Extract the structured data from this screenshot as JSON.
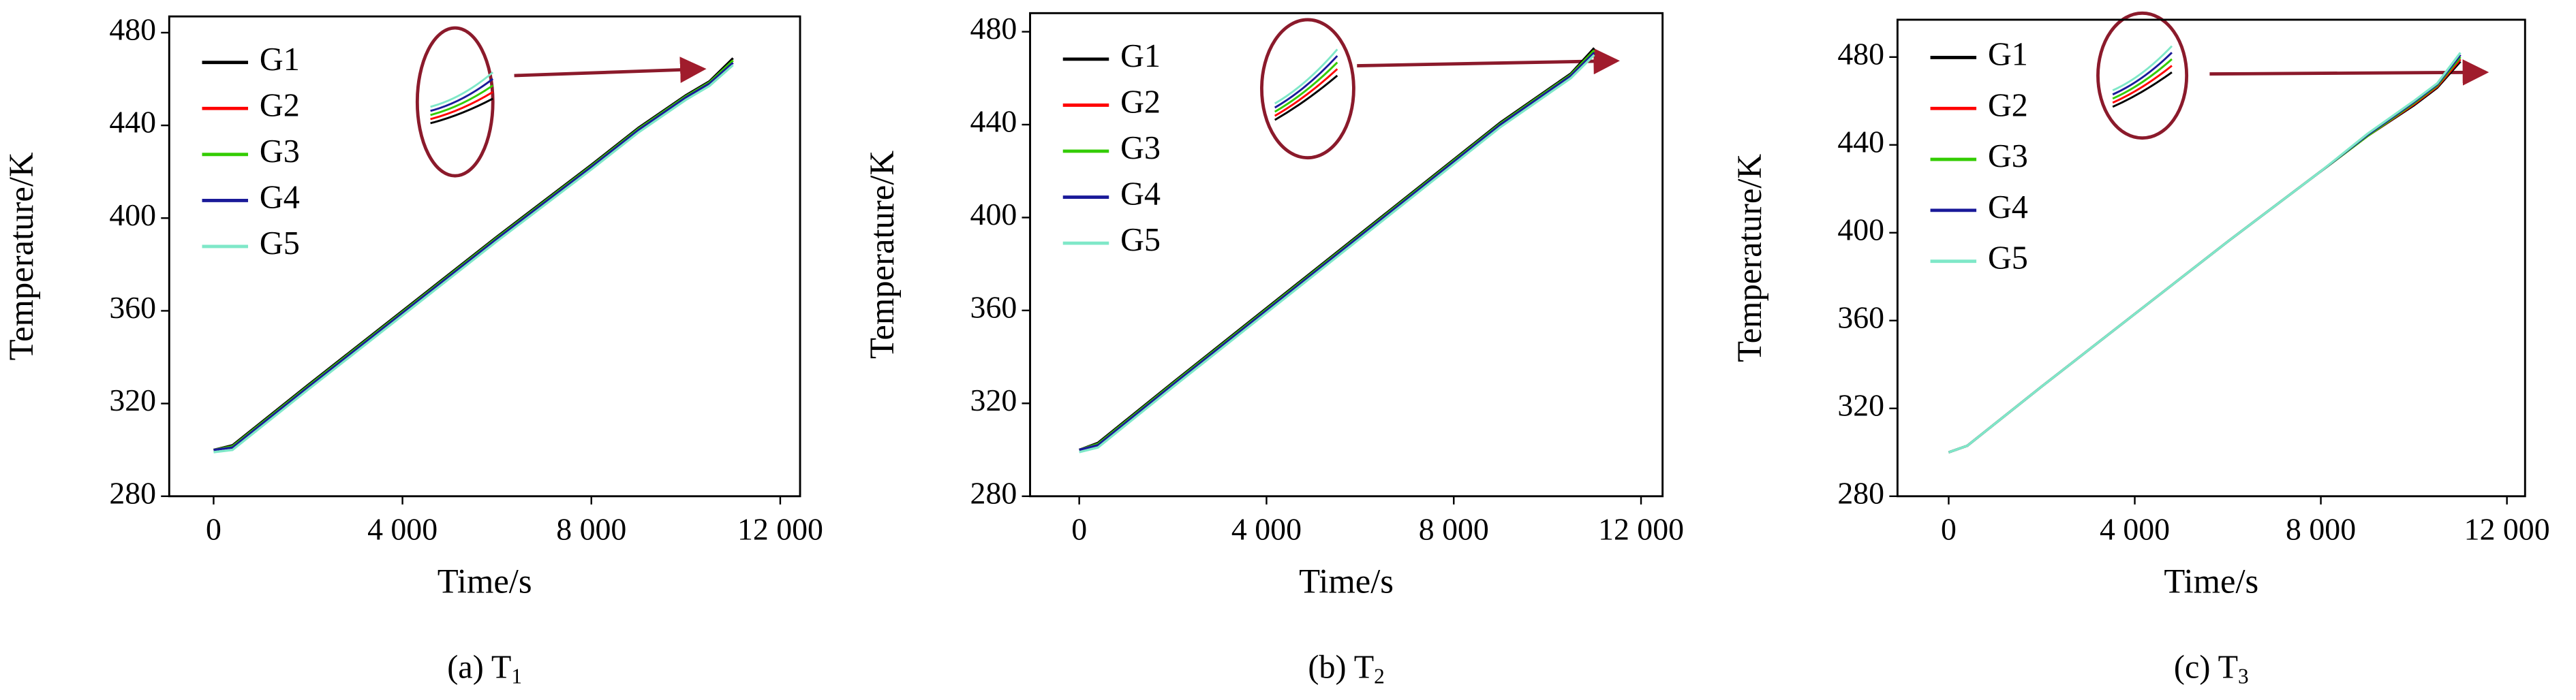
{
  "chart_data": [
    {
      "type": "line",
      "xlabel": "Time/s",
      "ylabel": "Temperature/K",
      "caption": "(a) T",
      "caption_subscript": "1",
      "x": [
        0,
        400,
        2000,
        4000,
        6000,
        8000,
        9000,
        10000,
        10500,
        11000
      ],
      "series": [
        {
          "name": "G1",
          "color": "#000000",
          "values": [
            300,
            302,
            328,
            360,
            392,
            423,
            439,
            453,
            459,
            469
          ]
        },
        {
          "name": "G2",
          "color": "#ff0000",
          "values": [
            300,
            301.5,
            327.5,
            359.5,
            391.5,
            422.5,
            438.5,
            452.5,
            458.5,
            468
          ]
        },
        {
          "name": "G3",
          "color": "#33cc00",
          "values": [
            300,
            301.5,
            327.5,
            359.5,
            391.5,
            422.5,
            438.5,
            452.5,
            458.5,
            468
          ]
        },
        {
          "name": "G4",
          "color": "#1a1a99",
          "values": [
            300,
            301,
            327,
            359,
            391,
            422,
            438,
            452,
            458,
            467
          ]
        },
        {
          "name": "G5",
          "color": "#7fe8c8",
          "values": [
            299,
            300,
            326,
            358,
            390,
            421,
            437,
            451,
            457,
            466
          ]
        }
      ],
      "xlim": [
        -940,
        12420
      ],
      "ylim": [
        280,
        487
      ],
      "xticks": [
        0,
        {
          "value": 4000,
          "label": "4 000"
        },
        {
          "value": 8000,
          "label": "8 000"
        },
        {
          "value": 12000,
          "label": "12 000"
        }
      ],
      "yticks": [
        280,
        320,
        360,
        400,
        440,
        480
      ],
      "legend": "upper left"
    },
    {
      "type": "line",
      "xlabel": "Time/s",
      "ylabel": "Temperature/K",
      "caption": "(b) T",
      "caption_subscript": "2",
      "x": [
        0,
        400,
        2000,
        4000,
        6000,
        8000,
        9000,
        10000,
        10500,
        11000
      ],
      "series": [
        {
          "name": "G1",
          "color": "#000000",
          "values": [
            300,
            303,
            329,
            361,
            393,
            425,
            441,
            455,
            462,
            473
          ]
        },
        {
          "name": "G2",
          "color": "#ff0000",
          "values": [
            300,
            302.5,
            328.5,
            360.5,
            392.5,
            424.5,
            440.5,
            454.5,
            461.5,
            472
          ]
        },
        {
          "name": "G3",
          "color": "#33cc00",
          "values": [
            300,
            302.5,
            328.5,
            360.5,
            392.5,
            424.5,
            440.5,
            454.5,
            461.5,
            472
          ]
        },
        {
          "name": "G4",
          "color": "#1a1a99",
          "values": [
            300,
            302,
            328,
            360,
            392,
            424,
            440,
            454,
            461,
            471
          ]
        },
        {
          "name": "G5",
          "color": "#7fe8c8",
          "values": [
            299,
            301,
            327,
            359,
            391,
            423,
            439,
            453,
            460,
            470
          ]
        }
      ],
      "xlim": [
        -1050,
        12460
      ],
      "ylim": [
        280,
        488
      ],
      "xticks": [
        0,
        {
          "value": 4000,
          "label": "4 000"
        },
        {
          "value": 8000,
          "label": "8 000"
        },
        {
          "value": 12000,
          "label": "12 000"
        }
      ],
      "yticks": [
        280,
        320,
        360,
        400,
        440,
        480
      ],
      "legend": "upper left"
    },
    {
      "type": "line",
      "xlabel": "Time/s",
      "ylabel": "Temperature/K",
      "caption": "(c) T",
      "caption_subscript": "3",
      "x": [
        0,
        400,
        2000,
        4000,
        6000,
        8000,
        9000,
        10000,
        10500,
        11000
      ],
      "series": [
        {
          "name": "G1",
          "color": "#000000",
          "values": [
            300,
            303,
            330,
            363,
            396,
            428,
            444,
            458,
            466,
            478
          ]
        },
        {
          "name": "G2",
          "color": "#ff0000",
          "values": [
            300,
            303,
            330,
            363,
            396,
            428,
            444,
            458.5,
            466.5,
            479
          ]
        },
        {
          "name": "G3",
          "color": "#33cc00",
          "values": [
            300,
            303,
            330,
            363,
            396,
            428,
            444,
            459,
            467,
            480
          ]
        },
        {
          "name": "G4",
          "color": "#1a1a99",
          "values": [
            300,
            303,
            330,
            363,
            396,
            428,
            444.5,
            459.5,
            467.5,
            481
          ]
        },
        {
          "name": "G5",
          "color": "#7fe8c8",
          "values": [
            300,
            303,
            330,
            363,
            396,
            428,
            445,
            460,
            468,
            482
          ]
        }
      ],
      "xlim": [
        -1100,
        12390
      ],
      "ylim": [
        280,
        497
      ],
      "xticks": [
        0,
        {
          "value": 4000,
          "label": "4 000"
        },
        {
          "value": 8000,
          "label": "8 000"
        },
        {
          "value": 12000,
          "label": "12 000"
        }
      ],
      "yticks": [
        280,
        320,
        360,
        400,
        440,
        480
      ],
      "legend": "upper left"
    }
  ]
}
